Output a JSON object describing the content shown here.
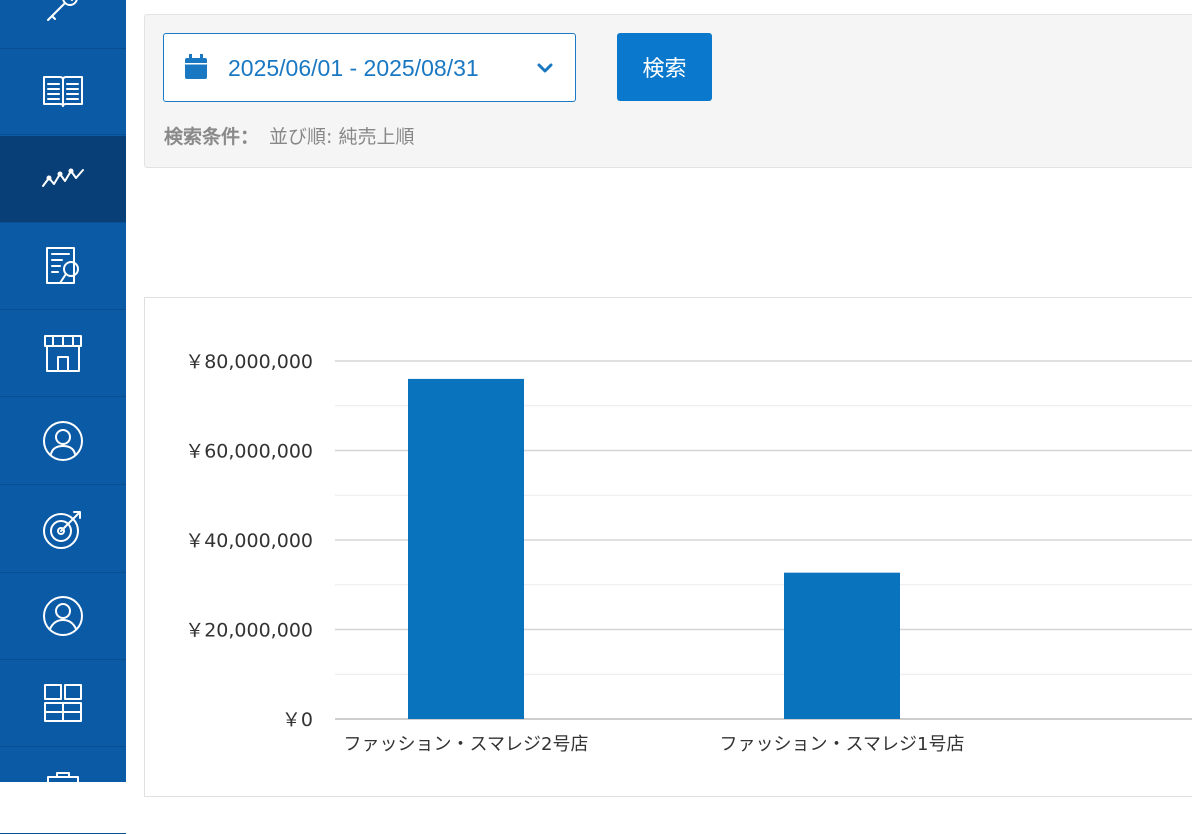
{
  "sidebar": {
    "items": [
      {
        "icon": "wrench-icon",
        "active": false
      },
      {
        "icon": "book-icon",
        "active": false
      },
      {
        "icon": "line-chart-icon",
        "active": true
      },
      {
        "icon": "report-search-icon",
        "active": false
      },
      {
        "icon": "store-icon",
        "active": false
      },
      {
        "icon": "customer-icon",
        "active": false
      },
      {
        "icon": "target-icon",
        "active": false
      },
      {
        "icon": "user-icon",
        "active": false
      },
      {
        "icon": "grid-icon",
        "active": false
      },
      {
        "icon": "clipboard-icon",
        "active": false
      }
    ]
  },
  "search": {
    "date_range": "2025/06/01 - 2025/08/31",
    "button_label": "検索",
    "condition_label": "検索条件：",
    "condition_value": "並び順: 純売上順"
  },
  "colors": {
    "sidebar": "#0b5aa6",
    "sidebar_active": "#083f77",
    "accent": "#0a78cc",
    "bar": "#0a73bd"
  },
  "chart_data": {
    "type": "bar",
    "categories": [
      "ファッション・スマレジ2号店",
      "ファッション・スマレジ1号店"
    ],
    "values": [
      76000000,
      32700000
    ],
    "ylim": [
      0,
      80000000
    ],
    "yticks": [
      0,
      20000000,
      40000000,
      60000000,
      80000000
    ],
    "ytick_labels": [
      "￥0",
      "￥20,000,000",
      "￥40,000,000",
      "￥60,000,000",
      "￥80,000,000"
    ],
    "minor_grid": true,
    "legend": "none"
  }
}
